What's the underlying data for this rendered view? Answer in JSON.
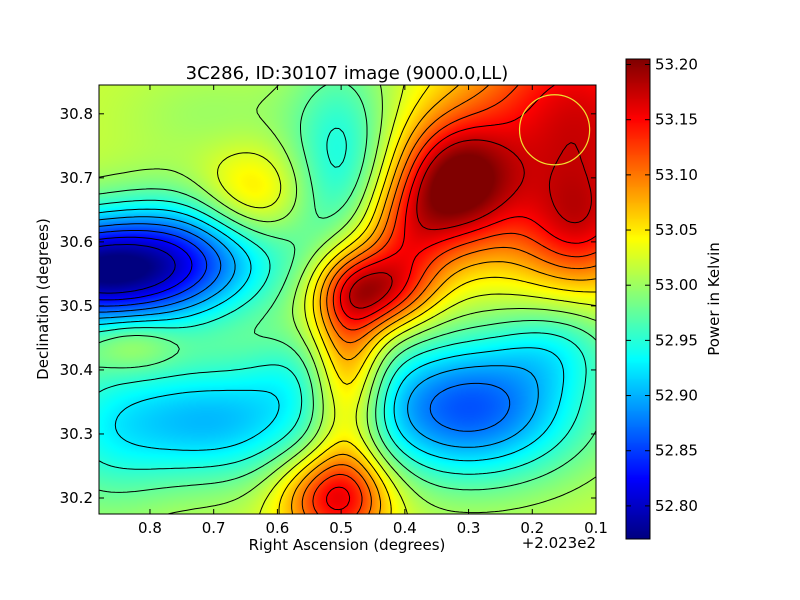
{
  "chart_data": {
    "type": "heatmap",
    "title": "3C286, ID:30107 image (9000.0,LL)",
    "xlabel": "Right Ascension (degrees)",
    "ylabel": "Declination (degrees)",
    "x_offset_label": "+2.023e2",
    "xlim": [
      0.88,
      0.1
    ],
    "ylim": [
      30.175,
      30.845
    ],
    "x_ticks": [
      0.8,
      0.7,
      0.6,
      0.5,
      0.4,
      0.3,
      0.2,
      0.1
    ],
    "x_tick_labels": [
      "0.8",
      "0.7",
      "0.6",
      "0.5",
      "0.4",
      "0.3",
      "0.2",
      "0.1"
    ],
    "y_ticks": [
      30.2,
      30.3,
      30.4,
      30.5,
      30.6,
      30.7,
      30.8
    ],
    "y_tick_labels": [
      "30.2",
      "30.3",
      "30.4",
      "30.5",
      "30.6",
      "30.7",
      "30.8"
    ],
    "colorbar": {
      "label": "Power in Kelvin",
      "range": [
        52.77,
        53.205
      ],
      "ticks": [
        52.8,
        52.85,
        52.9,
        52.95,
        53.0,
        53.05,
        53.1,
        53.15,
        53.2
      ],
      "tick_labels": [
        "52.80",
        "52.85",
        "52.90",
        "52.95",
        "53.00",
        "53.05",
        "53.10",
        "53.15",
        "53.20"
      ],
      "colormap": "jet"
    },
    "field": {
      "base": 53.02,
      "components": [
        {
          "x": 0.87,
          "y": 30.555,
          "amp": -0.25,
          "sx": 0.15,
          "sy": 0.06
        },
        {
          "x": 0.73,
          "y": 30.62,
          "amp": -0.05,
          "sx": 0.1,
          "sy": 0.06
        },
        {
          "x": 0.3,
          "y": 30.34,
          "amp": -0.16,
          "sx": 0.13,
          "sy": 0.08
        },
        {
          "x": 0.16,
          "y": 30.44,
          "amp": -0.05,
          "sx": 0.07,
          "sy": 0.05
        },
        {
          "x": 0.7,
          "y": 30.32,
          "amp": -0.11,
          "sx": 0.12,
          "sy": 0.07
        },
        {
          "x": 0.88,
          "y": 30.3,
          "amp": -0.05,
          "sx": 0.08,
          "sy": 0.1
        },
        {
          "x": 0.57,
          "y": 30.4,
          "amp": -0.03,
          "sx": 0.06,
          "sy": 0.05
        },
        {
          "x": 0.5,
          "y": 30.72,
          "amp": -0.08,
          "sx": 0.06,
          "sy": 0.12
        },
        {
          "x": 0.7,
          "y": 30.8,
          "amp": -0.02,
          "sx": 0.1,
          "sy": 0.05
        },
        {
          "x": 0.32,
          "y": 30.69,
          "amp": 0.17,
          "sx": 0.065,
          "sy": 0.07
        },
        {
          "x": 0.45,
          "y": 30.525,
          "amp": 0.14,
          "sx": 0.06,
          "sy": 0.045
        },
        {
          "x": 0.4,
          "y": 30.61,
          "amp": 0.08,
          "sx": 0.05,
          "sy": 0.06
        },
        {
          "x": 0.49,
          "y": 30.4,
          "amp": 0.11,
          "sx": 0.04,
          "sy": 0.12
        },
        {
          "x": 0.51,
          "y": 30.2,
          "amp": 0.13,
          "sx": 0.06,
          "sy": 0.05
        },
        {
          "x": 0.13,
          "y": 30.78,
          "amp": 0.15,
          "sx": 0.12,
          "sy": 0.14
        },
        {
          "x": 0.13,
          "y": 30.62,
          "amp": 0.07,
          "sx": 0.06,
          "sy": 0.06
        },
        {
          "x": 0.64,
          "y": 30.67,
          "amp": 0.06,
          "sx": 0.06,
          "sy": 0.05
        },
        {
          "x": 0.83,
          "y": 30.44,
          "amp": 0.04,
          "sx": 0.05,
          "sy": 0.03
        }
      ]
    },
    "contour_levels": [
      52.8,
      52.825,
      52.85,
      52.875,
      52.9,
      52.925,
      52.95,
      52.975,
      53.0,
      53.025,
      53.05,
      53.075,
      53.1,
      53.125,
      53.15,
      53.175
    ],
    "beam": {
      "x": 0.165,
      "y": 30.775,
      "r": 0.055,
      "color": "#f2e030"
    },
    "grid": false
  }
}
